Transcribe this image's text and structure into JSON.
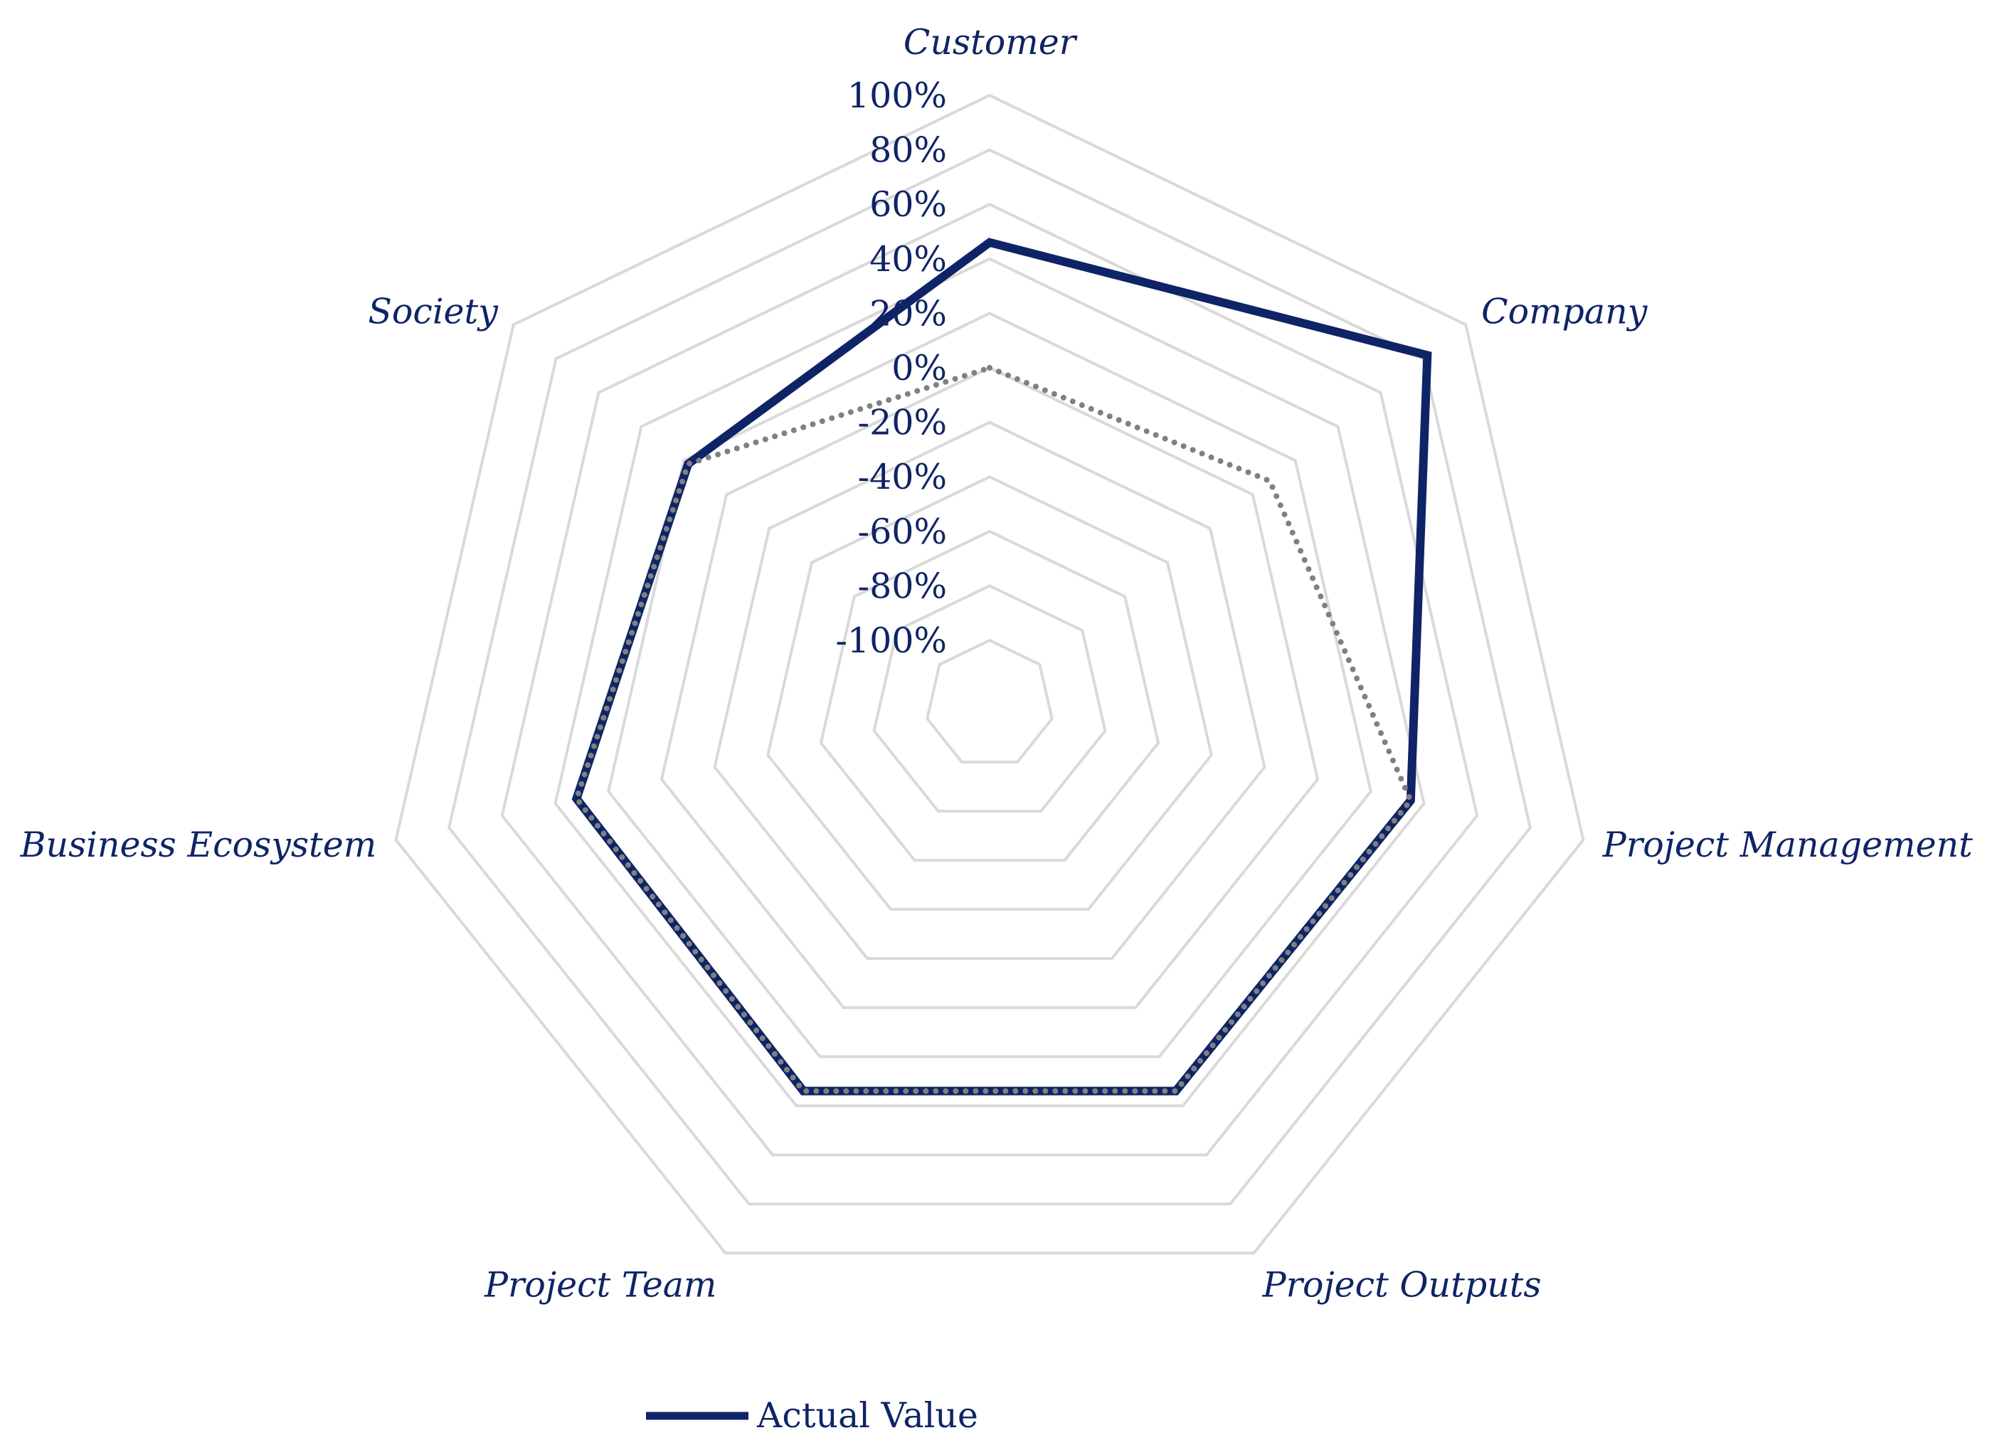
{
  "chart_data": {
    "type": "radar",
    "title": "",
    "axes": [
      "Customer",
      "Company",
      "Project Management",
      "Project Outputs",
      "Project Team",
      "Business Ecosystem",
      "Society"
    ],
    "radial_ticks": [
      "100%",
      "80%",
      "60%",
      "40%",
      "20%",
      "0%",
      "-20%",
      "-40%",
      "-60%",
      "-80%",
      "-100%"
    ],
    "rlim": [
      -100,
      100
    ],
    "series": [
      {
        "name": "Actual Value",
        "style": "solid",
        "color": "#0f2466",
        "values": [
          46,
          82,
          35,
          34,
          34,
          32,
          18
        ]
      },
      {
        "name": "",
        "style": "dotted",
        "color": "#808080",
        "values": [
          0,
          8,
          35,
          34,
          34,
          32,
          18
        ]
      }
    ],
    "legend": {
      "position": "bottom",
      "entries": [
        {
          "label": "Actual Value",
          "color": "#0f2466"
        }
      ]
    },
    "grid": true,
    "colors": {
      "grid": "#d9d9d9",
      "text": "#0f2466"
    }
  }
}
